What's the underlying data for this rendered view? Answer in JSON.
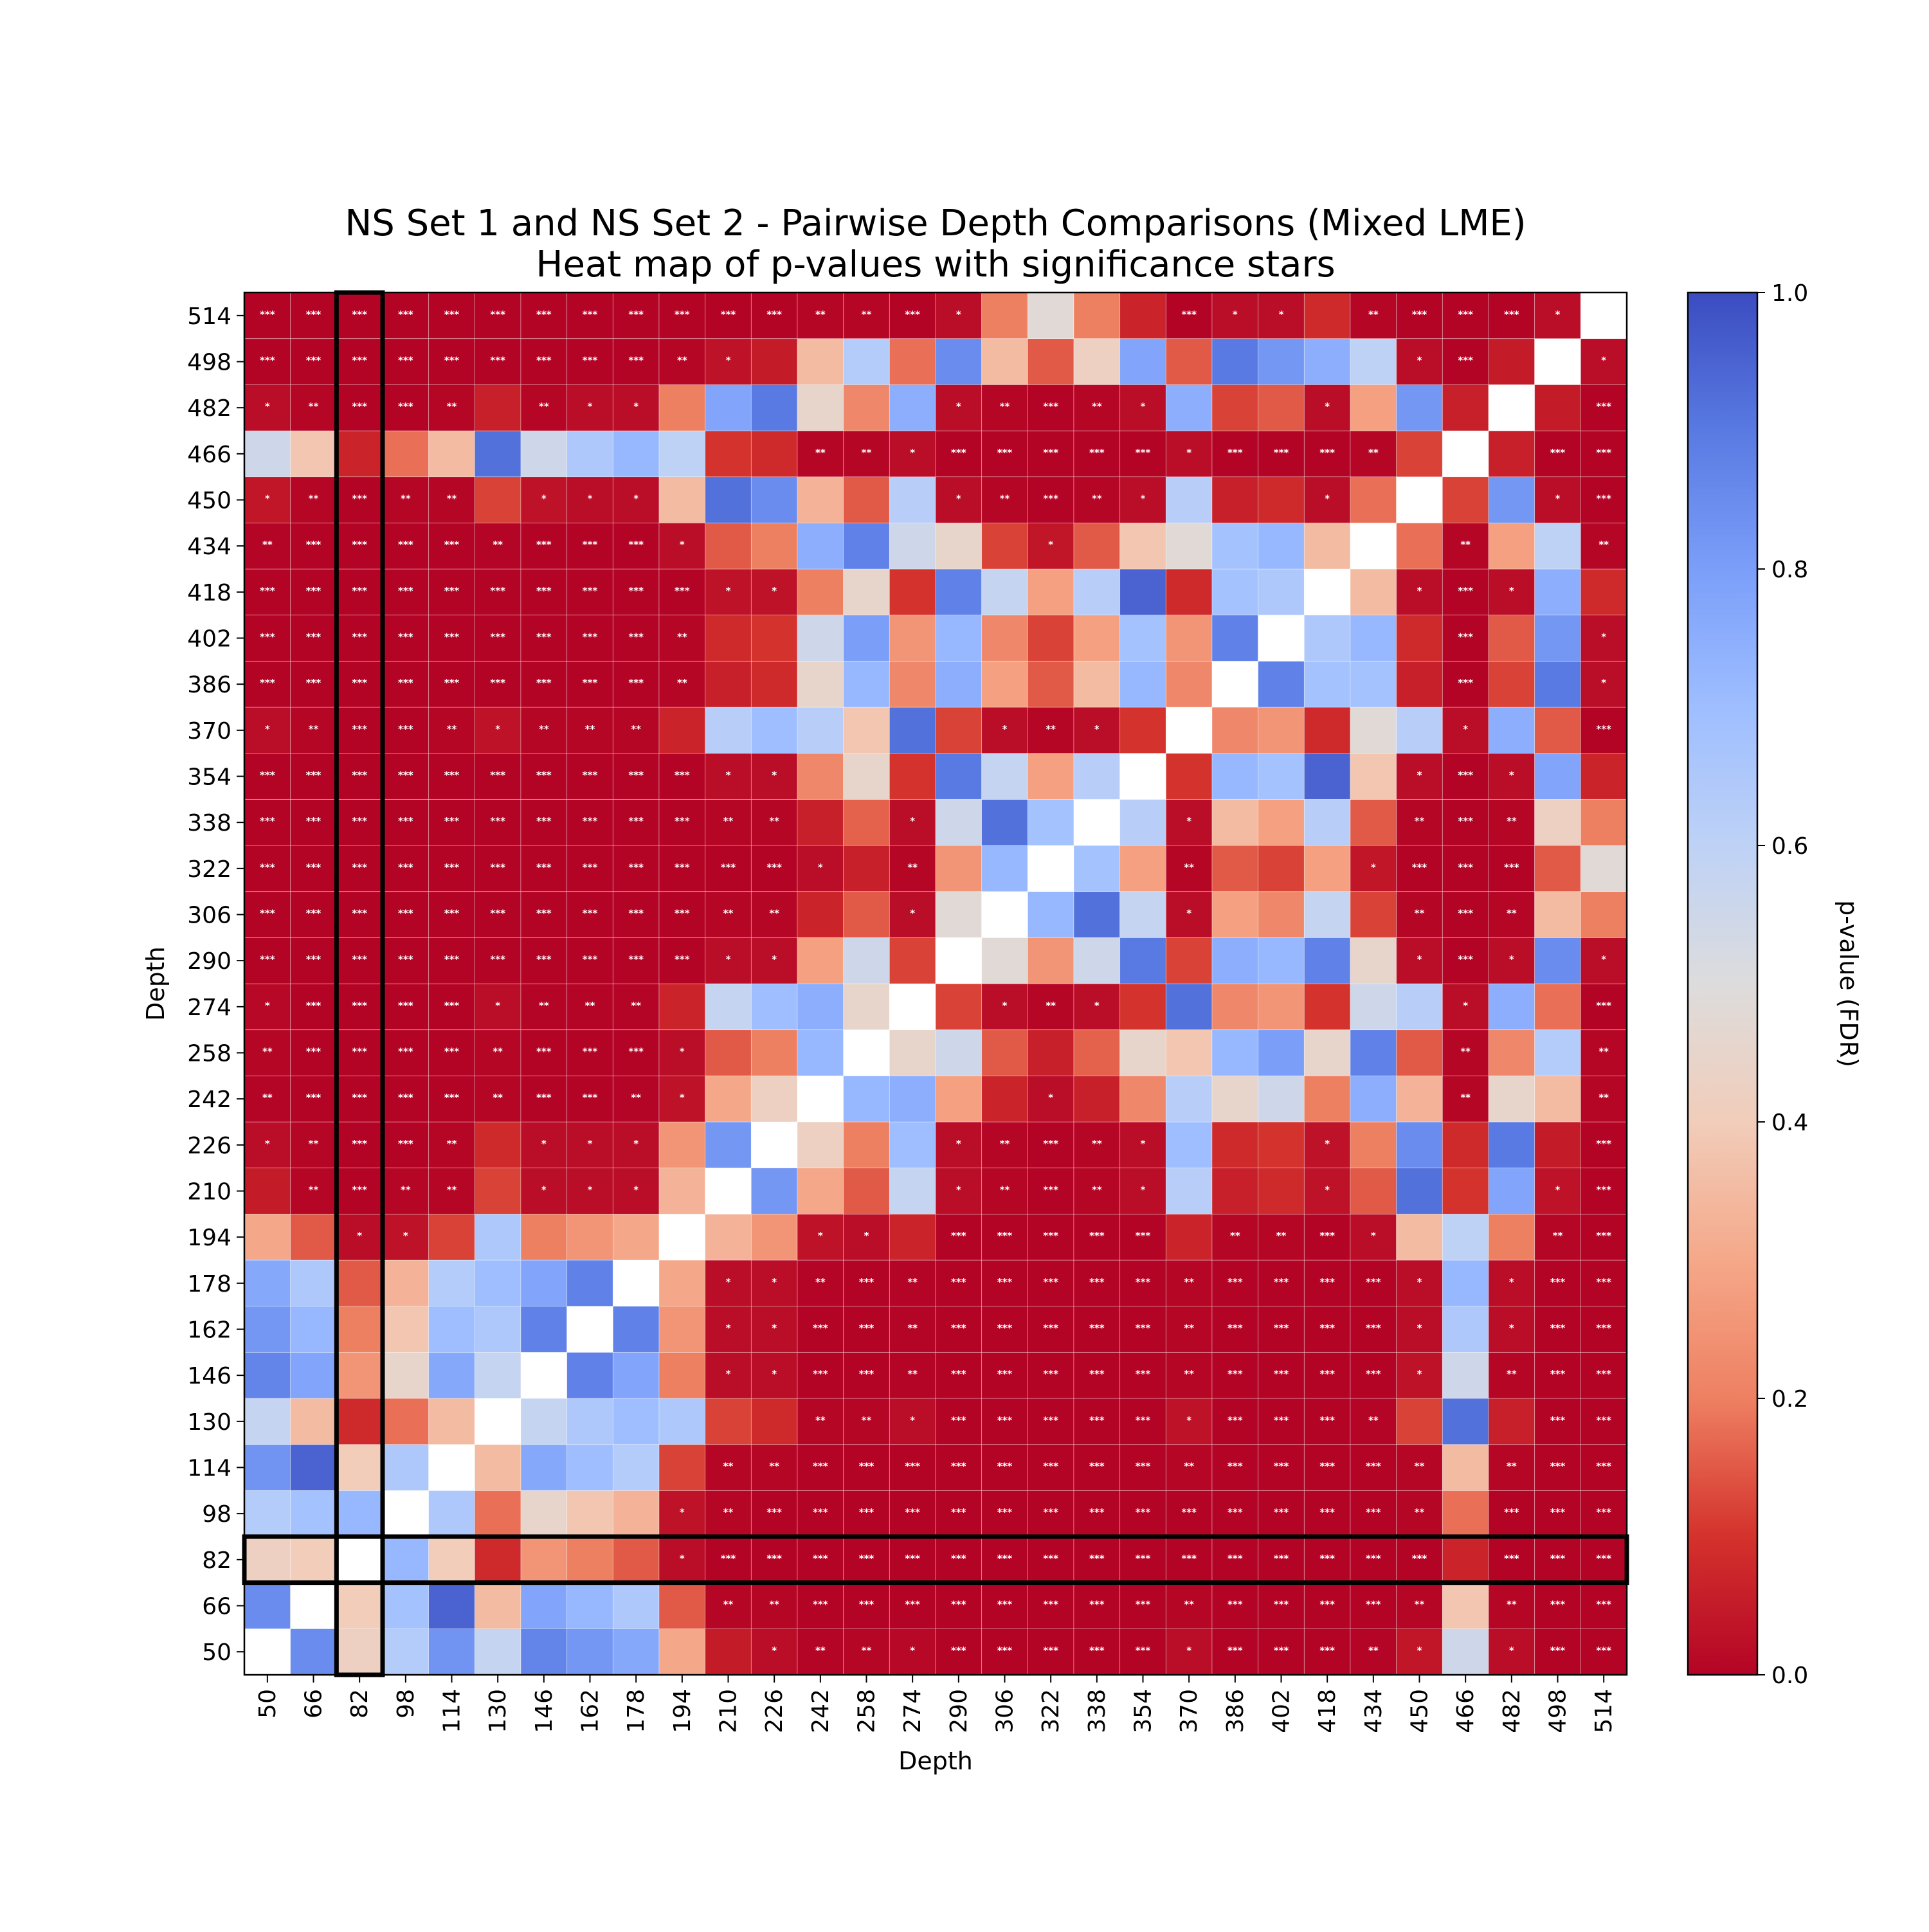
{
  "chart_data": {
    "type": "heatmap",
    "title": "NS Set 1 and NS Set 2 - Pairwise Depth Comparisons (Mixed LME)",
    "subtitle": "Heat map of p-values with significance stars",
    "xlabel": "Depth",
    "ylabel": "Depth",
    "colorbar_label": "p-value (FDR)",
    "colormap": "coolwarm_r",
    "vmin": 0.0,
    "vmax": 1.0,
    "colorbar_ticks": [
      "0.0",
      "0.2",
      "0.4",
      "0.6",
      "0.8",
      "1.0"
    ],
    "x_categories": [
      "50",
      "66",
      "82",
      "98",
      "114",
      "130",
      "146",
      "162",
      "178",
      "194",
      "210",
      "226",
      "242",
      "258",
      "274",
      "290",
      "306",
      "322",
      "338",
      "354",
      "370",
      "386",
      "402",
      "418",
      "434",
      "450",
      "466",
      "482",
      "498",
      "514"
    ],
    "y_categories": [
      "50",
      "66",
      "82",
      "98",
      "114",
      "130",
      "146",
      "162",
      "178",
      "194",
      "210",
      "226",
      "242",
      "258",
      "274",
      "290",
      "306",
      "322",
      "338",
      "354",
      "370",
      "386",
      "402",
      "418",
      "434",
      "450",
      "466",
      "482",
      "498",
      "514"
    ],
    "highlighted_depth": "82",
    "pvalues": [
      [
        1.0,
        0.85,
        0.42,
        0.63,
        0.83,
        0.58,
        0.87,
        0.82,
        0.77,
        0.3,
        0.05,
        0.02,
        0.003,
        0.004,
        0.01,
        0.0009,
        0.0002,
        0.0002,
        0.0003,
        0.0003,
        0.02,
        0.0008,
        0.0008,
        0.0003,
        0.003,
        0.04,
        0.55,
        0.02,
        0.0009,
        0.0002
      ],
      [
        0.85,
        1.0,
        0.4,
        0.68,
        0.95,
        0.35,
        0.78,
        0.72,
        0.65,
        0.15,
        0.005,
        0.004,
        0.0009,
        0.0003,
        0.0009,
        0.0002,
        0.0002,
        0.0002,
        0.0002,
        0.0003,
        0.005,
        0.0002,
        0.0002,
        0.0003,
        0.0003,
        0.004,
        0.38,
        0.004,
        0.0002,
        0.0002
      ],
      [
        0.42,
        0.4,
        1.0,
        0.72,
        0.4,
        0.08,
        0.25,
        0.2,
        0.15,
        0.02,
        0.0009,
        0.0009,
        0.0003,
        0.0002,
        0.0003,
        0.0002,
        0.0002,
        0.0002,
        0.0002,
        0.0002,
        0.0003,
        0.0002,
        0.0002,
        0.0002,
        0.0002,
        0.0009,
        0.07,
        0.0009,
        0.0002,
        0.0002
      ],
      [
        0.63,
        0.68,
        0.72,
        1.0,
        0.65,
        0.18,
        0.45,
        0.38,
        0.33,
        0.03,
        0.005,
        0.0009,
        0.0002,
        0.0003,
        0.0009,
        0.0002,
        0.0003,
        0.0002,
        0.0002,
        0.0002,
        0.0009,
        0.0002,
        0.0003,
        0.0003,
        0.0003,
        0.004,
        0.18,
        0.0009,
        0.0002,
        0.0002
      ],
      [
        0.83,
        0.95,
        0.4,
        0.65,
        1.0,
        0.35,
        0.77,
        0.7,
        0.63,
        0.12,
        0.004,
        0.004,
        0.0009,
        0.0003,
        0.0009,
        0.0002,
        0.0003,
        0.0002,
        0.0002,
        0.0003,
        0.004,
        0.0002,
        0.0002,
        0.0003,
        0.0003,
        0.004,
        0.35,
        0.004,
        0.0003,
        0.0002
      ],
      [
        0.58,
        0.35,
        0.08,
        0.18,
        0.35,
        1.0,
        0.58,
        0.65,
        0.7,
        0.65,
        0.12,
        0.08,
        0.004,
        0.004,
        0.02,
        0.0002,
        0.0003,
        0.0003,
        0.0003,
        0.0003,
        0.03,
        0.0009,
        0.0009,
        0.0003,
        0.003,
        0.12,
        0.92,
        0.06,
        0.0009,
        0.0003
      ],
      [
        0.87,
        0.78,
        0.25,
        0.45,
        0.77,
        0.58,
        1.0,
        0.88,
        0.78,
        0.2,
        0.02,
        0.02,
        0.0009,
        0.0002,
        0.003,
        0.0002,
        0.0002,
        0.0002,
        0.0003,
        0.0003,
        0.005,
        0.0002,
        0.0003,
        0.0003,
        0.0009,
        0.03,
        0.55,
        0.005,
        0.0002,
        0.0003
      ],
      [
        0.82,
        0.72,
        0.2,
        0.38,
        0.7,
        0.65,
        0.88,
        1.0,
        0.88,
        0.25,
        0.02,
        0.02,
        0.0009,
        0.0009,
        0.003,
        0.0003,
        0.0003,
        0.0003,
        0.0003,
        0.0009,
        0.005,
        0.0002,
        0.0002,
        0.0003,
        0.0009,
        0.02,
        0.65,
        0.02,
        0.0003,
        0.0003
      ],
      [
        0.77,
        0.65,
        0.15,
        0.33,
        0.63,
        0.7,
        0.78,
        0.88,
        1.0,
        0.3,
        0.02,
        0.02,
        0.003,
        0.0009,
        0.003,
        0.0002,
        0.0002,
        0.0003,
        0.0003,
        0.0003,
        0.005,
        0.0003,
        0.0002,
        0.0003,
        0.0009,
        0.02,
        0.72,
        0.02,
        0.0003,
        0.0003
      ],
      [
        0.3,
        0.15,
        0.02,
        0.03,
        0.12,
        0.65,
        0.2,
        0.25,
        0.3,
        1.0,
        0.33,
        0.25,
        0.03,
        0.02,
        0.07,
        0.0009,
        0.0003,
        0.0003,
        0.0003,
        0.0009,
        0.07,
        0.004,
        0.004,
        0.0009,
        0.02,
        0.35,
        0.6,
        0.2,
        0.005,
        0.0003
      ],
      [
        0.05,
        0.005,
        0.0009,
        0.005,
        0.004,
        0.12,
        0.02,
        0.02,
        0.02,
        0.33,
        1.0,
        0.82,
        0.3,
        0.15,
        0.58,
        0.02,
        0.004,
        0.0009,
        0.004,
        0.02,
        0.62,
        0.06,
        0.08,
        0.03,
        0.15,
        0.92,
        0.1,
        0.78,
        0.03,
        0.0003
      ],
      [
        0.02,
        0.004,
        0.0009,
        0.0009,
        0.004,
        0.08,
        0.02,
        0.02,
        0.02,
        0.25,
        0.82,
        1.0,
        0.42,
        0.2,
        0.7,
        0.02,
        0.004,
        0.0009,
        0.004,
        0.02,
        0.7,
        0.08,
        0.1,
        0.03,
        0.2,
        0.85,
        0.08,
        0.9,
        0.05,
        0.0003
      ],
      [
        0.003,
        0.0009,
        0.0003,
        0.0002,
        0.0009,
        0.004,
        0.0009,
        0.0009,
        0.003,
        0.03,
        0.3,
        0.42,
        1.0,
        0.72,
        0.75,
        0.28,
        0.07,
        0.02,
        0.06,
        0.22,
        0.62,
        0.45,
        0.55,
        0.2,
        0.75,
        0.33,
        0.004,
        0.45,
        0.35,
        0.004
      ],
      [
        0.004,
        0.0003,
        0.0002,
        0.0003,
        0.0003,
        0.004,
        0.0002,
        0.0009,
        0.0009,
        0.02,
        0.15,
        0.2,
        0.72,
        1.0,
        0.45,
        0.55,
        0.15,
        0.06,
        0.16,
        0.45,
        0.38,
        0.72,
        0.8,
        0.45,
        0.88,
        0.15,
        0.004,
        0.22,
        0.63,
        0.004
      ],
      [
        0.01,
        0.0009,
        0.0003,
        0.0009,
        0.0009,
        0.02,
        0.003,
        0.003,
        0.003,
        0.07,
        0.58,
        0.7,
        0.75,
        0.45,
        1.0,
        0.12,
        0.02,
        0.004,
        0.02,
        0.1,
        0.92,
        0.22,
        0.25,
        0.1,
        0.55,
        0.62,
        0.02,
        0.75,
        0.18,
        0.0009
      ],
      [
        0.0009,
        0.0002,
        0.0002,
        0.0002,
        0.0002,
        0.0002,
        0.0002,
        0.0003,
        0.0002,
        0.0009,
        0.02,
        0.02,
        0.28,
        0.55,
        0.12,
        1.0,
        0.48,
        0.25,
        0.55,
        0.9,
        0.12,
        0.75,
        0.72,
        0.88,
        0.45,
        0.02,
        0.0003,
        0.02,
        0.85,
        0.02
      ],
      [
        0.0002,
        0.0002,
        0.0002,
        0.0003,
        0.0003,
        0.0003,
        0.0002,
        0.0003,
        0.0002,
        0.0003,
        0.004,
        0.004,
        0.07,
        0.15,
        0.02,
        0.48,
        1.0,
        0.72,
        0.92,
        0.58,
        0.02,
        0.28,
        0.22,
        0.58,
        0.12,
        0.004,
        0.0003,
        0.004,
        0.35,
        0.2
      ],
      [
        0.0002,
        0.0002,
        0.0002,
        0.0002,
        0.0002,
        0.0003,
        0.0002,
        0.0003,
        0.0003,
        0.0003,
        0.0009,
        0.0009,
        0.02,
        0.06,
        0.004,
        0.25,
        0.72,
        1.0,
        0.68,
        0.28,
        0.004,
        0.15,
        0.12,
        0.28,
        0.04,
        0.0009,
        0.0003,
        0.0009,
        0.15,
        0.48
      ],
      [
        0.0003,
        0.0002,
        0.0002,
        0.0002,
        0.0002,
        0.0003,
        0.0003,
        0.0003,
        0.0003,
        0.0003,
        0.004,
        0.004,
        0.06,
        0.16,
        0.02,
        0.55,
        0.92,
        0.68,
        1.0,
        0.62,
        0.02,
        0.35,
        0.28,
        0.62,
        0.15,
        0.004,
        0.0003,
        0.004,
        0.42,
        0.2
      ],
      [
        0.0003,
        0.0003,
        0.0002,
        0.0002,
        0.0003,
        0.0003,
        0.0003,
        0.0009,
        0.0003,
        0.0009,
        0.02,
        0.02,
        0.22,
        0.45,
        0.1,
        0.9,
        0.58,
        0.28,
        0.62,
        1.0,
        0.1,
        0.72,
        0.68,
        0.95,
        0.38,
        0.02,
        0.0003,
        0.02,
        0.78,
        0.07
      ],
      [
        0.02,
        0.005,
        0.0003,
        0.0009,
        0.004,
        0.03,
        0.005,
        0.005,
        0.005,
        0.07,
        0.62,
        0.7,
        0.62,
        0.38,
        0.92,
        0.12,
        0.02,
        0.004,
        0.02,
        0.1,
        1.0,
        0.22,
        0.25,
        0.08,
        0.48,
        0.62,
        0.02,
        0.75,
        0.15,
        0.0009
      ],
      [
        0.0008,
        0.0002,
        0.0002,
        0.0002,
        0.0002,
        0.0009,
        0.0002,
        0.0002,
        0.0003,
        0.004,
        0.06,
        0.08,
        0.45,
        0.72,
        0.22,
        0.75,
        0.28,
        0.15,
        0.35,
        0.72,
        0.22,
        1.0,
        0.88,
        0.68,
        0.68,
        0.06,
        0.0009,
        0.12,
        0.9,
        0.02
      ],
      [
        0.0008,
        0.0002,
        0.0002,
        0.0003,
        0.0002,
        0.0009,
        0.0003,
        0.0002,
        0.0002,
        0.004,
        0.08,
        0.1,
        0.55,
        0.8,
        0.25,
        0.72,
        0.22,
        0.12,
        0.28,
        0.68,
        0.25,
        0.88,
        1.0,
        0.65,
        0.72,
        0.08,
        0.0009,
        0.15,
        0.82,
        0.02
      ],
      [
        0.0003,
        0.0003,
        0.0002,
        0.0003,
        0.0003,
        0.0003,
        0.0003,
        0.0003,
        0.0003,
        0.0009,
        0.03,
        0.03,
        0.2,
        0.45,
        0.1,
        0.88,
        0.58,
        0.28,
        0.62,
        0.95,
        0.08,
        0.68,
        0.65,
        1.0,
        0.35,
        0.02,
        0.0003,
        0.02,
        0.75,
        0.08
      ],
      [
        0.003,
        0.0003,
        0.0002,
        0.0003,
        0.0003,
        0.003,
        0.0009,
        0.0009,
        0.0009,
        0.02,
        0.15,
        0.2,
        0.75,
        0.88,
        0.55,
        0.45,
        0.12,
        0.04,
        0.15,
        0.38,
        0.48,
        0.68,
        0.72,
        0.35,
        1.0,
        0.18,
        0.004,
        0.28,
        0.6,
        0.004
      ],
      [
        0.04,
        0.004,
        0.0009,
        0.004,
        0.004,
        0.12,
        0.03,
        0.02,
        0.02,
        0.35,
        0.92,
        0.85,
        0.33,
        0.15,
        0.62,
        0.02,
        0.004,
        0.0009,
        0.004,
        0.02,
        0.62,
        0.06,
        0.08,
        0.02,
        0.18,
        1.0,
        0.12,
        0.82,
        0.02,
        0.0003
      ],
      [
        0.55,
        0.38,
        0.07,
        0.18,
        0.35,
        0.92,
        0.55,
        0.65,
        0.72,
        0.6,
        0.1,
        0.08,
        0.004,
        0.004,
        0.02,
        0.0003,
        0.0003,
        0.0003,
        0.0003,
        0.0003,
        0.02,
        0.0009,
        0.0009,
        0.0003,
        0.004,
        0.12,
        1.0,
        0.06,
        0.0009,
        0.0003
      ],
      [
        0.02,
        0.004,
        0.0009,
        0.0009,
        0.004,
        0.06,
        0.005,
        0.02,
        0.02,
        0.2,
        0.78,
        0.9,
        0.45,
        0.22,
        0.75,
        0.02,
        0.004,
        0.0009,
        0.004,
        0.02,
        0.75,
        0.12,
        0.15,
        0.02,
        0.28,
        0.82,
        0.06,
        1.0,
        0.05,
        0.0003
      ],
      [
        0.0009,
        0.0002,
        0.0002,
        0.0002,
        0.0003,
        0.0009,
        0.0002,
        0.0003,
        0.0003,
        0.005,
        0.03,
        0.05,
        0.35,
        0.63,
        0.18,
        0.85,
        0.35,
        0.15,
        0.42,
        0.78,
        0.15,
        0.9,
        0.82,
        0.75,
        0.6,
        0.02,
        0.0009,
        0.05,
        1.0,
        0.02
      ],
      [
        0.0002,
        0.0002,
        0.0002,
        0.0002,
        0.0002,
        0.0003,
        0.0003,
        0.0003,
        0.0003,
        0.0003,
        0.0003,
        0.0003,
        0.004,
        0.004,
        0.0009,
        0.02,
        0.2,
        0.48,
        0.2,
        0.07,
        0.0009,
        0.02,
        0.02,
        0.08,
        0.004,
        0.0003,
        0.0003,
        0.0003,
        0.02,
        1.0
      ]
    ]
  }
}
